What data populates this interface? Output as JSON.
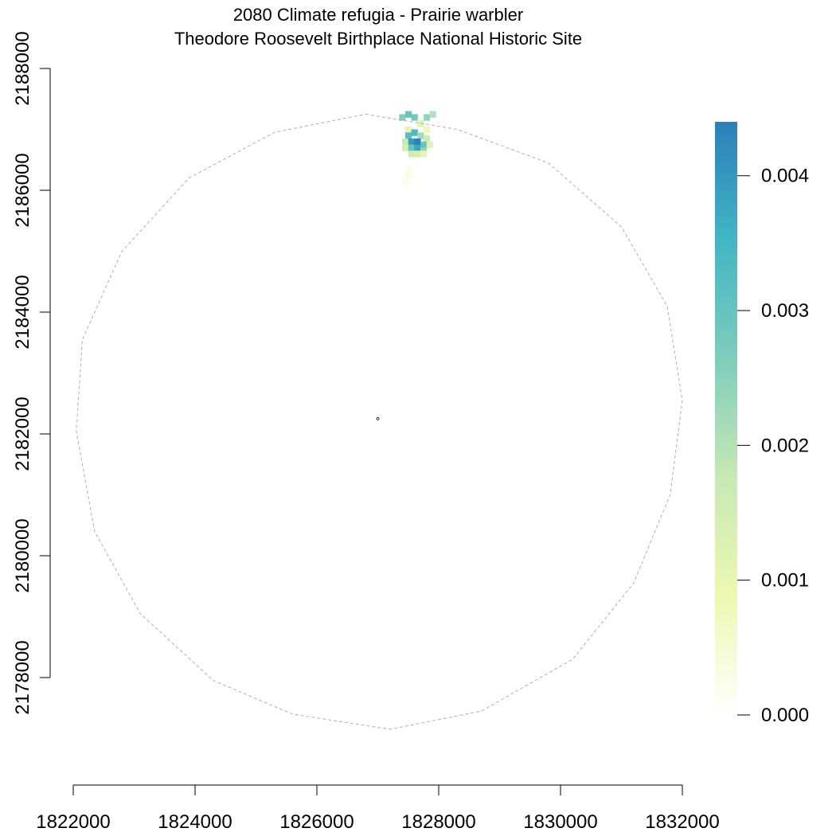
{
  "title": {
    "line1": "2080 Climate refugia - Prairie warbler",
    "line2": "Theodore Roosevelt Birthplace National Historic Site"
  },
  "chart_data": {
    "type": "heatmap",
    "x_axis": {
      "range": [
        1822000,
        1832000
      ],
      "ticks": [
        1822000,
        1824000,
        1826000,
        1828000,
        1830000,
        1832000
      ],
      "tick_labels": [
        "1822000",
        "1824000",
        "1826000",
        "1828000",
        "1830000",
        "1832000"
      ]
    },
    "y_axis": {
      "range": [
        2178000,
        2188000
      ],
      "ticks": [
        2178000,
        2180000,
        2182000,
        2184000,
        2186000,
        2188000
      ],
      "tick_labels": [
        "2178000",
        "2180000",
        "2182000",
        "2184000",
        "2186000",
        "2188000"
      ]
    },
    "colorbar": {
      "range": [
        0,
        0.0044
      ],
      "ticks": [
        0,
        0.001,
        0.002,
        0.003,
        0.004
      ],
      "tick_labels": [
        "0.000",
        "0.001",
        "0.002",
        "0.003",
        "0.004"
      ],
      "colors": [
        "#ffffff",
        "#edf8b1",
        "#c7e9b4",
        "#7fcdbb",
        "#41b6c4",
        "#2c7fb8"
      ],
      "placement": "right"
    },
    "buffer_boundary": {
      "style": "dashed",
      "color": "#b0b0b0",
      "polygon": [
        [
          1826800,
          2187250
        ],
        [
          1828300,
          2187000
        ],
        [
          1829800,
          2186450
        ],
        [
          1831000,
          2185400
        ],
        [
          1831750,
          2184100
        ],
        [
          1832000,
          2182550
        ],
        [
          1831800,
          2181000
        ],
        [
          1831200,
          2179550
        ],
        [
          1830200,
          2178300
        ],
        [
          1828700,
          2177450
        ],
        [
          1827200,
          2177150
        ],
        [
          1825600,
          2177400
        ],
        [
          1824300,
          2177950
        ],
        [
          1823100,
          2179050
        ],
        [
          1822350,
          2180400
        ],
        [
          1822050,
          2182050
        ],
        [
          1822150,
          2183550
        ],
        [
          1822800,
          2185000
        ],
        [
          1823900,
          2186200
        ],
        [
          1825300,
          2186950
        ]
      ]
    },
    "site_marker": {
      "x": 1827000,
      "y": 2182250
    },
    "cells": [
      {
        "x": 1827400,
        "y": 2187200,
        "value": 0.0026
      },
      {
        "x": 1827500,
        "y": 2187250,
        "value": 0.003
      },
      {
        "x": 1827600,
        "y": 2187200,
        "value": 0.0028
      },
      {
        "x": 1827800,
        "y": 2187200,
        "value": 0.0024
      },
      {
        "x": 1827900,
        "y": 2187250,
        "value": 0.002
      },
      {
        "x": 1827700,
        "y": 2187100,
        "value": 0.0012
      },
      {
        "x": 1827500,
        "y": 2187000,
        "value": 0.001
      },
      {
        "x": 1827800,
        "y": 2187000,
        "value": 0.0008
      },
      {
        "x": 1827500,
        "y": 2186900,
        "value": 0.0032
      },
      {
        "x": 1827600,
        "y": 2186950,
        "value": 0.0034
      },
      {
        "x": 1827700,
        "y": 2186900,
        "value": 0.0022
      },
      {
        "x": 1827800,
        "y": 2186850,
        "value": 0.0016
      },
      {
        "x": 1827450,
        "y": 2186800,
        "value": 0.0018
      },
      {
        "x": 1827550,
        "y": 2186800,
        "value": 0.004
      },
      {
        "x": 1827650,
        "y": 2186800,
        "value": 0.0044
      },
      {
        "x": 1827750,
        "y": 2186750,
        "value": 0.003
      },
      {
        "x": 1827850,
        "y": 2186750,
        "value": 0.0012
      },
      {
        "x": 1827450,
        "y": 2186700,
        "value": 0.0014
      },
      {
        "x": 1827550,
        "y": 2186700,
        "value": 0.003
      },
      {
        "x": 1827650,
        "y": 2186700,
        "value": 0.0038
      },
      {
        "x": 1827750,
        "y": 2186650,
        "value": 0.0024
      },
      {
        "x": 1827550,
        "y": 2186600,
        "value": 0.0016
      },
      {
        "x": 1827650,
        "y": 2186600,
        "value": 0.0014
      },
      {
        "x": 1827750,
        "y": 2186600,
        "value": 0.001
      },
      {
        "x": 1827500,
        "y": 2186350,
        "value": 0.0002
      },
      {
        "x": 1827500,
        "y": 2186250,
        "value": 0.0003
      },
      {
        "x": 1827450,
        "y": 2186150,
        "value": 0.0002
      }
    ]
  }
}
